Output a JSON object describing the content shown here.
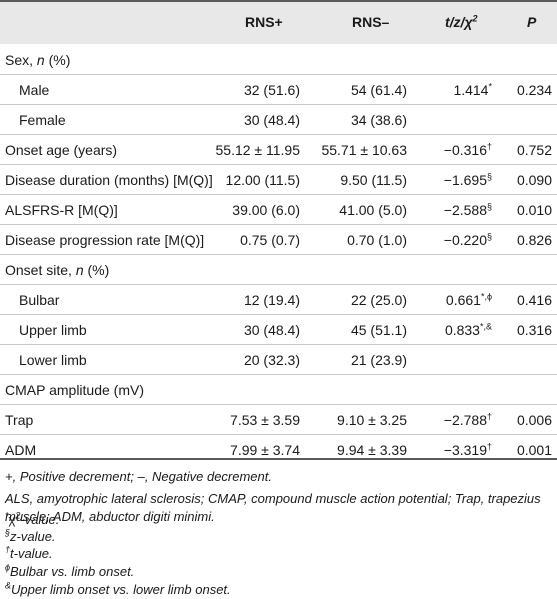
{
  "header": {
    "col_rns_pos": "RNS+",
    "col_rns_neg": "RNS–",
    "col_stat": "t/z/χ",
    "col_stat_sup": "2",
    "col_p": "P"
  },
  "rows": [
    {
      "type": "section",
      "label": "Sex, ",
      "label_italic": "n",
      "label_tail": " (%)"
    },
    {
      "type": "data",
      "indent": true,
      "label": "Male",
      "rns_pos": "32 (51.6)",
      "rns_neg": "54 (61.4)",
      "stat": "1.414",
      "stat_sup": "*",
      "p": "0.234"
    },
    {
      "type": "data",
      "indent": true,
      "label": "Female",
      "rns_pos": "30 (48.4)",
      "rns_neg": "34 (38.6)",
      "stat": "",
      "stat_sup": "",
      "p": ""
    },
    {
      "type": "data",
      "indent": false,
      "label": "Onset age (years)",
      "rns_pos": "55.12 ± 11.95",
      "rns_neg": "55.71 ± 10.63",
      "stat": "−0.316",
      "stat_sup": "†",
      "p": "0.752"
    },
    {
      "type": "data",
      "indent": false,
      "label": "Disease duration (months) [M(Q)]",
      "rns_pos": "12.00 (11.5)",
      "rns_neg": "9.50 (11.5)",
      "stat": "−1.695",
      "stat_sup": "§",
      "p": "0.090"
    },
    {
      "type": "data",
      "indent": false,
      "label": "ALSFRS-R [M(Q)]",
      "rns_pos": "39.00 (6.0)",
      "rns_neg": "41.00 (5.0)",
      "stat": "−2.588",
      "stat_sup": "§",
      "p": "0.010"
    },
    {
      "type": "data",
      "indent": false,
      "label": "Disease progression rate [M(Q)]",
      "rns_pos": "0.75 (0.7)",
      "rns_neg": "0.70 (1.0)",
      "stat": "−0.220",
      "stat_sup": "§",
      "p": "0.826"
    },
    {
      "type": "section",
      "label": "Onset site, ",
      "label_italic": "n",
      "label_tail": " (%)"
    },
    {
      "type": "data",
      "indent": true,
      "label": "Bulbar",
      "rns_pos": "12 (19.4)",
      "rns_neg": "22 (25.0)",
      "stat": "0.661",
      "stat_sup": "*,ϕ",
      "p": "0.416"
    },
    {
      "type": "data",
      "indent": true,
      "label": "Upper limb",
      "rns_pos": "30 (48.4)",
      "rns_neg": "45 (51.1)",
      "stat": "0.833",
      "stat_sup": "*,&",
      "p": "0.316"
    },
    {
      "type": "data",
      "indent": true,
      "label": "Lower limb",
      "rns_pos": "20 (32.3)",
      "rns_neg": "21 (23.9)",
      "stat": "",
      "stat_sup": "",
      "p": ""
    },
    {
      "type": "section",
      "label": "CMAP amplitude (mV)",
      "label_italic": "",
      "label_tail": ""
    },
    {
      "type": "data",
      "indent": false,
      "label": "Trap",
      "rns_pos": "7.53 ± 3.59",
      "rns_neg": "9.10 ± 3.25",
      "stat": "−2.788",
      "stat_sup": "†",
      "p": "0.006"
    },
    {
      "type": "data",
      "indent": false,
      "label": "ADM",
      "rns_pos": "7.99 ± 3.74",
      "rns_neg": "9.94 ± 3.39",
      "stat": "−3.319",
      "stat_sup": "†",
      "p": "0.001"
    }
  ],
  "footnotes": {
    "abbrev1": "+, Positive decrement; –, Negative decrement.",
    "abbrev2": "ALS, amyotrophic lateral sclerosis; CMAP, compound muscle action potential; Trap, trapezius muscle; ADM, abductor digiti minimi.",
    "n1_mark": "*",
    "n1_sym": "χ",
    "n1_sup": "2",
    "n1_text": "-value.",
    "n2_mark": "§",
    "n2_text": "z-value.",
    "n3_mark": "†",
    "n3_text": "t-value.",
    "n4_mark": "ϕ",
    "n4_text": "Bulbar vs. limb onset.",
    "n5_mark": "&",
    "n5_text": "Upper limb onset vs. lower limb onset."
  }
}
